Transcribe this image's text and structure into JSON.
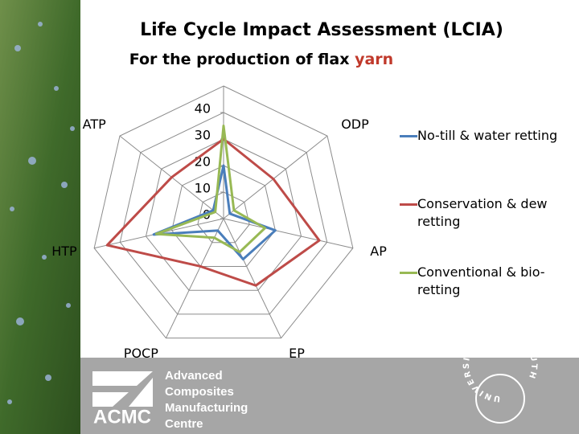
{
  "chart_data": {
    "type": "radar",
    "title": "Life Cycle Impact Assessment (LCIA)",
    "subtitle": "For the production of flax",
    "subtitle_highlight": "yarn",
    "categories": [
      null,
      "ODP",
      "AP",
      "EP",
      "POCP",
      "HTP",
      "ATP"
    ],
    "series": [
      {
        "name": "No-till & water retting",
        "color": "#4a7ebb",
        "values": [
          20,
          3,
          20,
          17,
          5,
          27,
          5
        ]
      },
      {
        "name": "Conservation & dew retting",
        "color": "#be4b48",
        "values": [
          30,
          24,
          37,
          28,
          20,
          45,
          25
        ]
      },
      {
        "name": "Conventional & bio-retting",
        "color": "#98b954",
        "values": [
          35,
          5,
          16,
          14,
          8,
          26,
          4
        ]
      }
    ],
    "ylim": [
      0,
      50
    ],
    "yticks": [
      0,
      10,
      20,
      30,
      40
    ],
    "grid": true
  },
  "footer": {
    "logo": "ACMC",
    "lines": [
      "Advanced",
      "Composites",
      "Manufacturing",
      "Centre"
    ],
    "university": "UNIVERSITY OF PLYMOUTH"
  }
}
